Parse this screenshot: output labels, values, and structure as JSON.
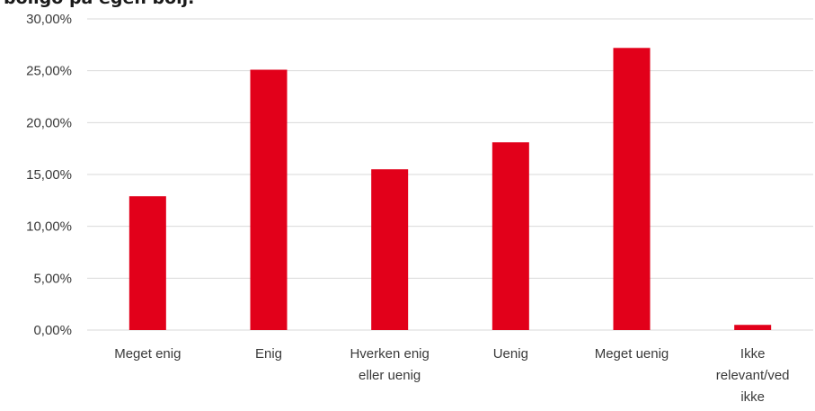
{
  "chart_data": {
    "type": "bar",
    "title": "boligo på egen boij.",
    "xlabel": "",
    "ylabel": "",
    "categories": [
      "Meget enig",
      "Enig",
      "Hverken enig eller uenig",
      "Uenig",
      "Meget uenig",
      "Ikke relevant/ved ikke"
    ],
    "category_label_lines": [
      [
        "Meget enig"
      ],
      [
        "Enig"
      ],
      [
        "Hverken enig",
        "eller uenig"
      ],
      [
        "Uenig"
      ],
      [
        "Meget uenig"
      ],
      [
        "Ikke",
        "relevant/ved",
        "ikke"
      ]
    ],
    "values": [
      12.9,
      25.1,
      15.5,
      18.1,
      27.2,
      0.5
    ],
    "ylim": [
      0,
      30
    ],
    "yticks": [
      0,
      5,
      10,
      15,
      20,
      25,
      30
    ],
    "ytick_labels": [
      "0,00%",
      "5,00%",
      "10,00%",
      "15,00%",
      "20,00%",
      "25,00%",
      "30,00%"
    ],
    "grid": true,
    "bar_color": "#e2001a",
    "grid_color": "#d9d9d9"
  }
}
